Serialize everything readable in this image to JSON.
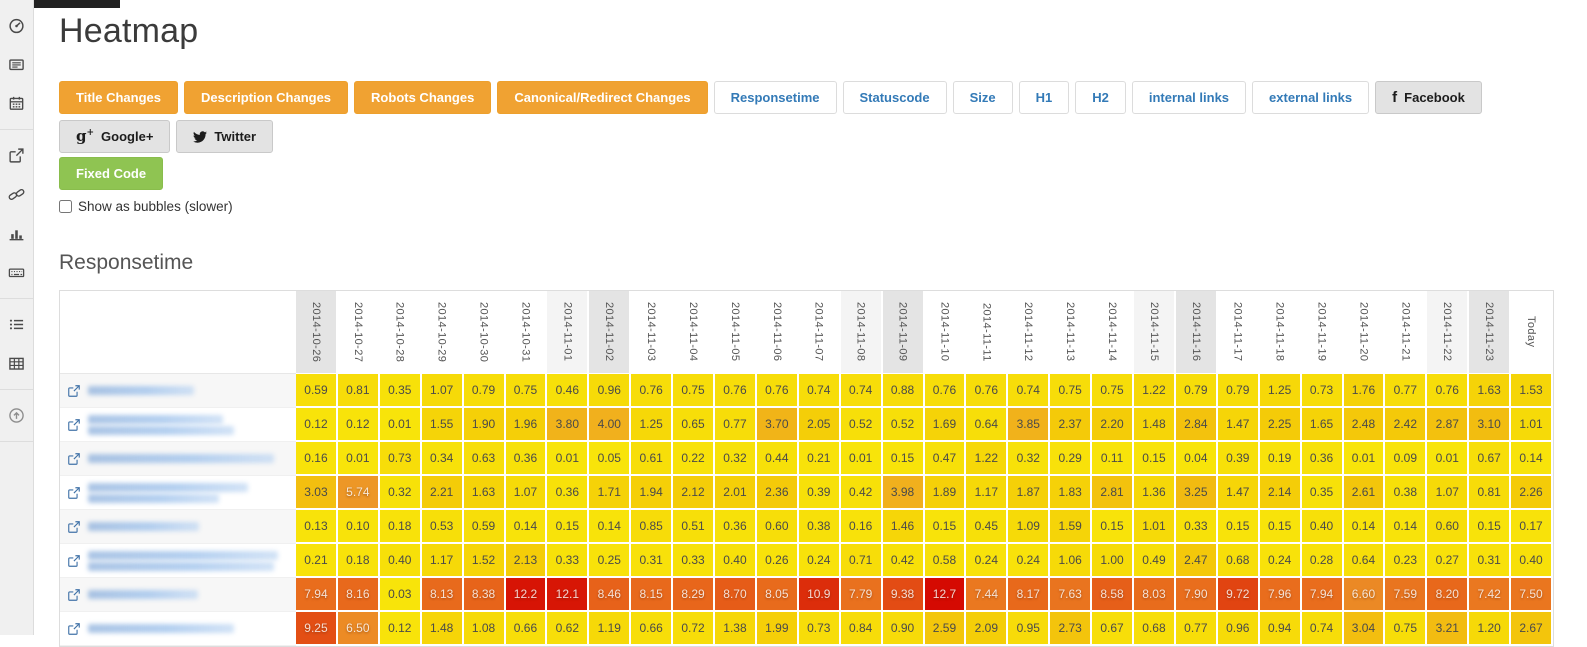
{
  "page": {
    "title": "Heatmap"
  },
  "sidebar": {
    "groups": [
      [
        "dashboard-icon",
        "newspaper-icon",
        "calendar-icon"
      ],
      [
        "external-link-icon",
        "link-icon",
        "bar-chart-icon",
        "keyboard-icon"
      ],
      [
        "list-icon",
        "table-icon"
      ],
      [
        "arrow-circle-up-icon"
      ]
    ]
  },
  "toolbar": {
    "orange_buttons": [
      "Title Changes",
      "Description Changes",
      "Robots Changes",
      "Canonical/Redirect Changes"
    ],
    "metric_buttons": [
      "Responsetime",
      "Statuscode",
      "Size",
      "H1",
      "H2",
      "internal links",
      "external links"
    ],
    "social_buttons": [
      {
        "label": "Facebook",
        "icon": "facebook-icon"
      },
      {
        "label": "Google+",
        "icon": "googleplus-icon"
      },
      {
        "label": "Twitter",
        "icon": "twitter-icon"
      }
    ],
    "fixed_code_button": "Fixed Code",
    "bubbles_label": "Show as bubbles (slower)"
  },
  "section_title": "Responsetime",
  "chart_data": {
    "type": "heatmap",
    "title": "Responsetime",
    "columns": [
      "2014-10-26",
      "2014-10-27",
      "2014-10-28",
      "2014-10-29",
      "2014-10-30",
      "2014-10-31",
      "2014-11-01",
      "2014-11-02",
      "2014-11-03",
      "2014-11-04",
      "2014-11-05",
      "2014-11-06",
      "2014-11-07",
      "2014-11-08",
      "2014-11-09",
      "2014-11-10",
      "2014-11-11",
      "2014-11-12",
      "2014-11-13",
      "2014-11-14",
      "2014-11-15",
      "2014-11-16",
      "2014-11-17",
      "2014-11-18",
      "2014-11-19",
      "2014-11-20",
      "2014-11-21",
      "2014-11-22",
      "2014-11-23",
      "Today"
    ],
    "weekend_shading": {
      "saturday_light": [
        "2014-11-01",
        "2014-11-08",
        "2014-11-15",
        "2014-11-22"
      ],
      "sunday_dark": [
        "2014-10-26",
        "2014-11-02",
        "2014-11-09",
        "2014-11-16",
        "2014-11-23"
      ]
    },
    "value_range": [
      0.01,
      12.7
    ],
    "color_scale": [
      "#F8E40A",
      "#F4CB08",
      "#F2BA12",
      "#F0A826",
      "#EC8E26",
      "#E8671B",
      "#E04010",
      "#D50A02"
    ],
    "light_text_threshold": 5,
    "rows": [
      {
        "label_redacted": true,
        "blur_widths": [
          106
        ],
        "values": [
          "0.59",
          "0.81",
          "0.35",
          "1.07",
          "0.79",
          "0.75",
          "0.46",
          "0.96",
          "0.76",
          "0.75",
          "0.76",
          "0.76",
          "0.74",
          "0.74",
          "0.88",
          "0.76",
          "0.76",
          "0.74",
          "0.75",
          "0.75",
          "1.22",
          "0.79",
          "0.79",
          "1.25",
          "0.73",
          "1.76",
          "0.77",
          "0.76",
          "1.63",
          "1.53"
        ]
      },
      {
        "label_redacted": true,
        "blur_widths": [
          135,
          146
        ],
        "values": [
          "0.12",
          "0.12",
          "0.01",
          "1.55",
          "1.90",
          "1.96",
          "3.80",
          "4.00",
          "1.25",
          "0.65",
          "0.77",
          "3.70",
          "2.05",
          "0.52",
          "0.52",
          "1.69",
          "0.64",
          "3.85",
          "2.37",
          "2.20",
          "1.48",
          "2.84",
          "1.47",
          "2.25",
          "1.65",
          "2.48",
          "2.42",
          "2.87",
          "3.10",
          "1.01"
        ]
      },
      {
        "label_redacted": true,
        "blur_widths": [
          186
        ],
        "values": [
          "0.16",
          "0.01",
          "0.73",
          "0.34",
          "0.63",
          "0.36",
          "0.01",
          "0.05",
          "0.61",
          "0.22",
          "0.32",
          "0.44",
          "0.21",
          "0.01",
          "0.15",
          "0.47",
          "1.22",
          "0.32",
          "0.29",
          "0.11",
          "0.15",
          "0.04",
          "0.39",
          "0.19",
          "0.36",
          "0.01",
          "0.09",
          "0.01",
          "0.67",
          "0.14"
        ]
      },
      {
        "label_redacted": true,
        "blur_widths": [
          160,
          131
        ],
        "values": [
          "3.03",
          "5.74",
          "0.32",
          "2.21",
          "1.63",
          "1.07",
          "0.36",
          "1.71",
          "1.94",
          "2.12",
          "2.01",
          "2.36",
          "0.39",
          "0.42",
          "3.98",
          "1.89",
          "1.17",
          "1.87",
          "1.83",
          "2.81",
          "1.36",
          "3.25",
          "1.47",
          "2.14",
          "0.35",
          "2.61",
          "0.38",
          "1.07",
          "0.81",
          "2.26"
        ]
      },
      {
        "label_redacted": true,
        "blur_widths": [
          111
        ],
        "values": [
          "0.13",
          "0.10",
          "0.18",
          "0.53",
          "0.59",
          "0.14",
          "0.15",
          "0.14",
          "0.85",
          "0.51",
          "0.36",
          "0.60",
          "0.38",
          "0.16",
          "1.46",
          "0.15",
          "0.45",
          "1.09",
          "1.59",
          "0.15",
          "1.01",
          "0.33",
          "0.15",
          "0.15",
          "0.40",
          "0.14",
          "0.14",
          "0.60",
          "0.15",
          "0.17"
        ]
      },
      {
        "label_redacted": true,
        "blur_widths": [
          190,
          186
        ],
        "values": [
          "0.21",
          "0.18",
          "0.40",
          "1.17",
          "1.52",
          "2.13",
          "0.33",
          "0.25",
          "0.31",
          "0.33",
          "0.40",
          "0.26",
          "0.24",
          "0.71",
          "0.42",
          "0.58",
          "0.24",
          "0.24",
          "1.06",
          "1.00",
          "0.49",
          "2.47",
          "0.68",
          "0.24",
          "0.28",
          "0.64",
          "0.23",
          "0.27",
          "0.31",
          "0.40"
        ]
      },
      {
        "label_redacted": true,
        "blur_widths": [
          110
        ],
        "values": [
          "7.94",
          "8.16",
          "0.03",
          "8.13",
          "8.38",
          "12.2",
          "12.1",
          "8.46",
          "8.15",
          "8.29",
          "8.70",
          "8.05",
          "10.9",
          "7.79",
          "9.38",
          "12.7",
          "7.44",
          "8.17",
          "7.63",
          "8.58",
          "8.03",
          "7.90",
          "9.72",
          "7.96",
          "7.94",
          "6.60",
          "7.59",
          "8.20",
          "7.42",
          "7.50"
        ]
      },
      {
        "label_redacted": true,
        "blur_widths": [
          146
        ],
        "values": [
          "9.25",
          "6.50",
          "0.12",
          "1.48",
          "1.08",
          "0.66",
          "0.62",
          "1.19",
          "0.66",
          "0.72",
          "1.38",
          "1.99",
          "0.73",
          "0.84",
          "0.90",
          "2.59",
          "2.09",
          "0.95",
          "2.73",
          "0.67",
          "0.68",
          "0.77",
          "0.96",
          "0.94",
          "0.74",
          "3.04",
          "0.75",
          "3.21",
          "1.20",
          "2.67"
        ]
      }
    ]
  }
}
